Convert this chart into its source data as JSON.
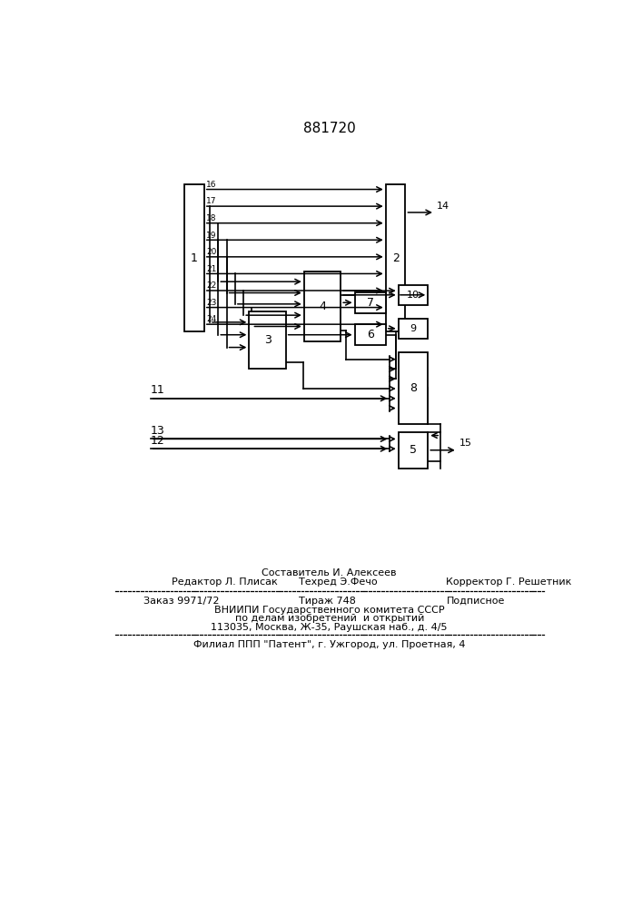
{
  "title": "881720",
  "bg_color": "#ffffff",
  "line_color": "#000000",
  "footer_line1": "Составитель И. Алексеев",
  "footer_line2_left": "Редактор Л. Плисак",
  "footer_line2_mid": "Техред Э.Фечо",
  "footer_line2_right": "Корректор Г. Решетник",
  "footer_line3_left": "Заказ 9971/72",
  "footer_line3_mid": "Тираж 748",
  "footer_line3_right": "Подписное",
  "footer_line4": "ВНИИПИ Государственного комитета СССР",
  "footer_line5": "по делам изобретений  и открытий",
  "footer_line6": "113035, Москва, Ж-35, Раушская наб., д. 4/5",
  "footer_line7": "Филиал ППП \"Патент\", г. Ужгород, ул. Проетная, 4",
  "bus_labels": [
    "16",
    "17",
    "18",
    "19",
    "20",
    "21",
    "22",
    "23",
    "24"
  ]
}
